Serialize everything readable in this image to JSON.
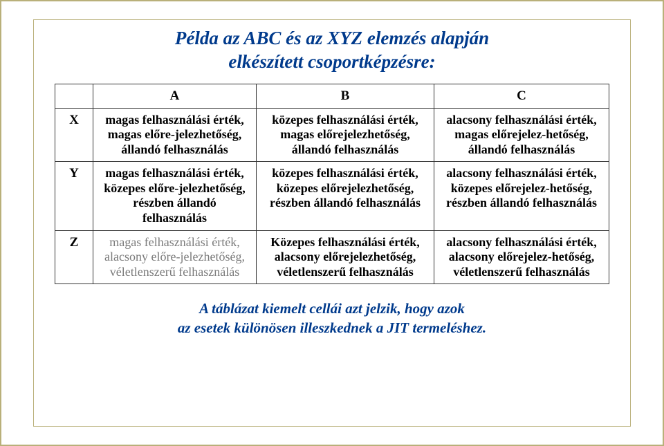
{
  "title_line1": "Példa az ABC és az XYZ elemzés alapján",
  "title_line2": "elkészített csoportképzésre:",
  "col_headers": {
    "a": "A",
    "b": "B",
    "c": "C"
  },
  "row_headers": {
    "x": "X",
    "y": "Y",
    "z": "Z"
  },
  "cells": {
    "x": {
      "a": "magas felhasználási érték, magas előre-jelezhetőség, állandó felhasználás",
      "b": "közepes felhasználási érték, magas előrejelezhetőség, állandó felhasználás",
      "c": "alacsony felhasználási érték, magas előrejelez-hetőség, állandó felhasználás"
    },
    "y": {
      "a": "magas felhasználási érték, közepes előre-jelezhetőség, részben állandó felhasználás",
      "b": "közepes felhasználási érték, közepes előrejelezhetőség, részben állandó felhasználás",
      "c": "alacsony felhasználási érték, közepes előrejelez-hetőség, részben állandó felhasználás"
    },
    "z": {
      "a": "magas felhasználási érték, alacsony előre-jelezhetőség, véletlenszerű felhasználás",
      "b": "Közepes felhasználási érték, alacsony előrejelezhetőség, véletlenszerű felhasználás",
      "c": "alacsony felhasználási érték, alacsony előrejelez-hetőség, véletlenszerű felhasználás"
    }
  },
  "emphasis": {
    "x": {
      "a": "bold",
      "b": "bold",
      "c": "bold"
    },
    "y": {
      "a": "bold",
      "b": "bold",
      "c": "bold"
    },
    "z": {
      "a": "light",
      "b": "bold",
      "c": "bold"
    }
  },
  "footer_line1": "A táblázat kiemelt cellái azt jelzik, hogy azok",
  "footer_line2": "az esetek különösen illeszkednek a JIT termeléshez.",
  "colors": {
    "title": "#003a8c",
    "border_outer": "#b9b07a",
    "cell_border": "#333333",
    "light_text": "#7a7a7a"
  }
}
